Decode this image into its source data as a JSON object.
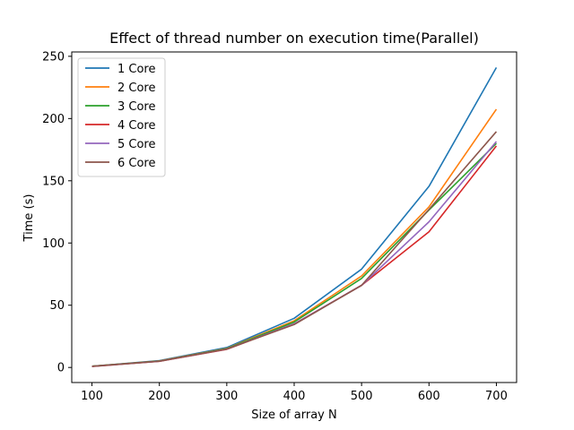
{
  "chart_data": {
    "type": "line",
    "title": "Effect of thread number on execution time(Parallel)",
    "xlabel": "Size of array N",
    "ylabel": "Time (s)",
    "x": [
      100,
      200,
      300,
      400,
      500,
      600,
      700
    ],
    "xticks": [
      100,
      200,
      300,
      400,
      500,
      600,
      700
    ],
    "yticks": [
      0,
      50,
      100,
      150,
      200,
      250
    ],
    "xlim": [
      70,
      730
    ],
    "ylim": [
      -12.1,
      253.5
    ],
    "grid": false,
    "legend_position": "upper-left",
    "series": [
      {
        "name": "1 Core",
        "color": "#1f77b4",
        "values": [
          1,
          5.5,
          16,
          39.5,
          79,
          145.5,
          241
        ]
      },
      {
        "name": "2 Core",
        "color": "#ff7f0e",
        "values": [
          1,
          5.2,
          15.3,
          37.5,
          73.5,
          129,
          207.5
        ]
      },
      {
        "name": "3 Core",
        "color": "#2ca02c",
        "values": [
          1,
          5.1,
          15.1,
          36.5,
          71.5,
          126.5,
          180
        ]
      },
      {
        "name": "4 Core",
        "color": "#d62728",
        "values": [
          0.8,
          4.9,
          14.6,
          35,
          66,
          109,
          178
        ]
      },
      {
        "name": "5 Core",
        "color": "#9467bd",
        "values": [
          0.9,
          5,
          14.8,
          35,
          66,
          117,
          181.5
        ]
      },
      {
        "name": "6 Core",
        "color": "#8c564b",
        "values": [
          0.9,
          5,
          14.8,
          34.5,
          66,
          127,
          189.5
        ]
      }
    ]
  }
}
